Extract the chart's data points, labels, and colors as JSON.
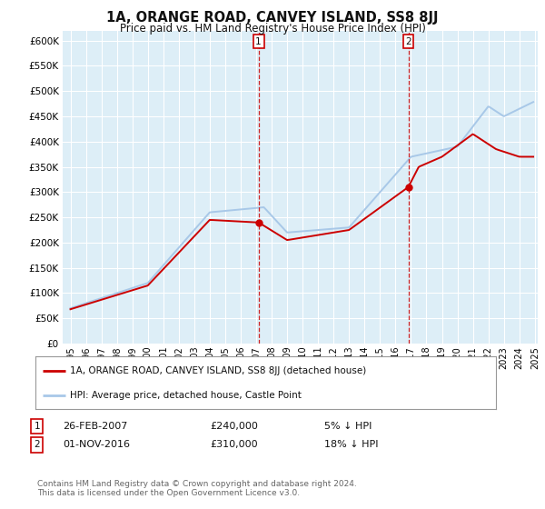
{
  "title": "1A, ORANGE ROAD, CANVEY ISLAND, SS8 8JJ",
  "subtitle": "Price paid vs. HM Land Registry's House Price Index (HPI)",
  "ylim": [
    0,
    620000
  ],
  "yticks": [
    0,
    50000,
    100000,
    150000,
    200000,
    250000,
    300000,
    350000,
    400000,
    450000,
    500000,
    550000,
    600000
  ],
  "bg_color": "#ffffff",
  "plot_bg_color": "#ddeef7",
  "grid_color": "#ffffff",
  "hpi_color": "#a8c8e8",
  "price_color": "#cc0000",
  "marker1_date_x": 2007.15,
  "marker1_price": 240000,
  "marker2_date_x": 2016.83,
  "marker2_price": 310000,
  "vline_color": "#cc0000",
  "legend_line1": "1A, ORANGE ROAD, CANVEY ISLAND, SS8 8JJ (detached house)",
  "legend_line2": "HPI: Average price, detached house, Castle Point",
  "annotation1_label": "1",
  "annotation1_text": "26-FEB-2007",
  "annotation1_price": "£240,000",
  "annotation1_pct": "5% ↓ HPI",
  "annotation2_label": "2",
  "annotation2_text": "01-NOV-2016",
  "annotation2_price": "£310,000",
  "annotation2_pct": "18% ↓ HPI",
  "footer": "Contains HM Land Registry data © Crown copyright and database right 2024.\nThis data is licensed under the Open Government Licence v3.0.",
  "xmin": 1995,
  "xmax": 2025
}
